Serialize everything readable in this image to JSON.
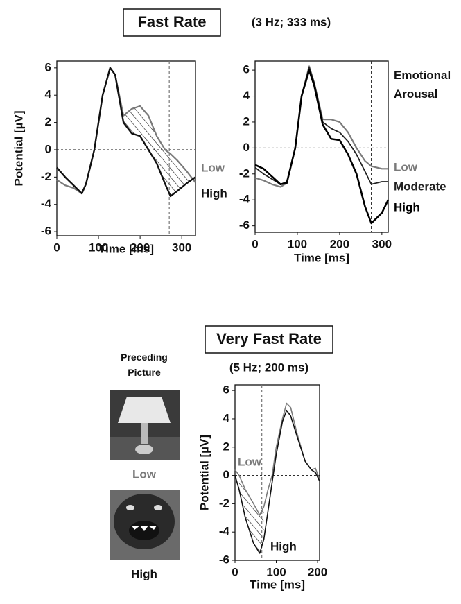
{
  "chart_data": [
    {
      "type": "line",
      "title": "Fast Rate",
      "subtitle": "(3 Hz; 333 ms)",
      "xlabel": "Time [ms]",
      "ylabel": "Potential [µV]",
      "x": [
        0,
        20,
        40,
        60,
        70,
        90,
        110,
        128,
        140,
        160,
        180,
        200,
        220,
        240,
        260,
        273,
        290,
        310,
        333
      ],
      "series": [
        {
          "name": "Low",
          "color": "#7a7a7a",
          "values": [
            -2.2,
            -2.6,
            -2.8,
            -3.2,
            -2.5,
            0,
            4,
            6,
            5.5,
            2.5,
            3,
            3.2,
            2.5,
            1,
            0,
            -0.3,
            -0.8,
            -1.5,
            -2.4
          ]
        },
        {
          "name": "High",
          "color": "#111111",
          "values": [
            -1.3,
            -2,
            -2.6,
            -3.2,
            -2.5,
            0,
            4,
            6,
            5.5,
            2,
            1.2,
            1,
            0,
            -1,
            -2.5,
            -3.4,
            -3,
            -2.5,
            -2
          ]
        }
      ],
      "xlim": [
        0,
        333
      ],
      "ylim": [
        -6.3,
        6.5
      ],
      "xticks": [
        0,
        100,
        200,
        300
      ],
      "yticks": [
        -6,
        -4,
        -2,
        0,
        2,
        4,
        6
      ],
      "vline": 270,
      "shade": [
        155,
        333
      ]
    },
    {
      "type": "line",
      "legend_title": "Emotional Arousal",
      "x": [
        0,
        20,
        40,
        60,
        75,
        95,
        110,
        128,
        140,
        160,
        180,
        200,
        220,
        240,
        260,
        275,
        300,
        315
      ],
      "series": [
        {
          "name": "Low",
          "color": "#7a7a7a",
          "values": [
            -2.3,
            -2.5,
            -2.8,
            -3,
            -2.7,
            0,
            4,
            6.3,
            5,
            2.2,
            2.2,
            2,
            1.2,
            0,
            -1,
            -1.4,
            -1.6,
            -1.6
          ]
        },
        {
          "name": "Moderate",
          "color": "#222222",
          "values": [
            -1.5,
            -2,
            -2.4,
            -2.8,
            -2.6,
            0,
            4,
            6.2,
            5,
            2,
            1.5,
            1.2,
            0.5,
            -0.5,
            -1.8,
            -2.8,
            -2.6,
            -2.6
          ]
        },
        {
          "name": "High",
          "color": "#000000",
          "values": [
            -1.3,
            -1.6,
            -2.2,
            -2.8,
            -2.7,
            0,
            4,
            6,
            4.8,
            1.8,
            0.7,
            0.6,
            -0.5,
            -2,
            -4.5,
            -5.8,
            -5,
            -4
          ]
        }
      ],
      "xlabel": "Time [ms]",
      "xlim": [
        0,
        315
      ],
      "ylim": [
        -6.5,
        6.7
      ],
      "xticks": [
        0,
        100,
        200,
        300
      ],
      "yticks": [
        -6,
        -4,
        -2,
        0,
        2,
        4,
        6
      ],
      "vline": 275
    },
    {
      "type": "line",
      "title": "Very Fast Rate",
      "subtitle": "(5 Hz; 200 ms)",
      "xlabel": "Time [ms]",
      "ylabel": "Potential [µV]",
      "x": [
        0,
        10,
        25,
        45,
        60,
        70,
        80,
        90,
        100,
        115,
        125,
        135,
        150,
        170,
        185,
        195,
        205
      ],
      "series": [
        {
          "name": "Low",
          "color": "#7a7a7a",
          "values": [
            0.4,
            0,
            -1,
            -2,
            -2.8,
            -2.2,
            -1,
            0,
            2,
            4,
            5.1,
            4.8,
            3,
            1,
            0.4,
            0.5,
            -0.3
          ]
        },
        {
          "name": "High",
          "color": "#111111",
          "values": [
            0,
            -1,
            -3,
            -4.8,
            -5.5,
            -4.5,
            -2.5,
            -0.5,
            1.5,
            3.8,
            4.6,
            4.2,
            2.8,
            1,
            0.4,
            0.2,
            -0.4
          ]
        }
      ],
      "xlim": [
        0,
        205
      ],
      "ylim": [
        -6,
        6.4
      ],
      "xticks": [
        0,
        100,
        200
      ],
      "yticks": [
        -6,
        -4,
        -2,
        0,
        2,
        4,
        6
      ],
      "vline": 65,
      "shade": [
        5,
        75
      ]
    }
  ],
  "images": {
    "title": "Preceding Picture",
    "labels": [
      "Low",
      "High"
    ]
  }
}
